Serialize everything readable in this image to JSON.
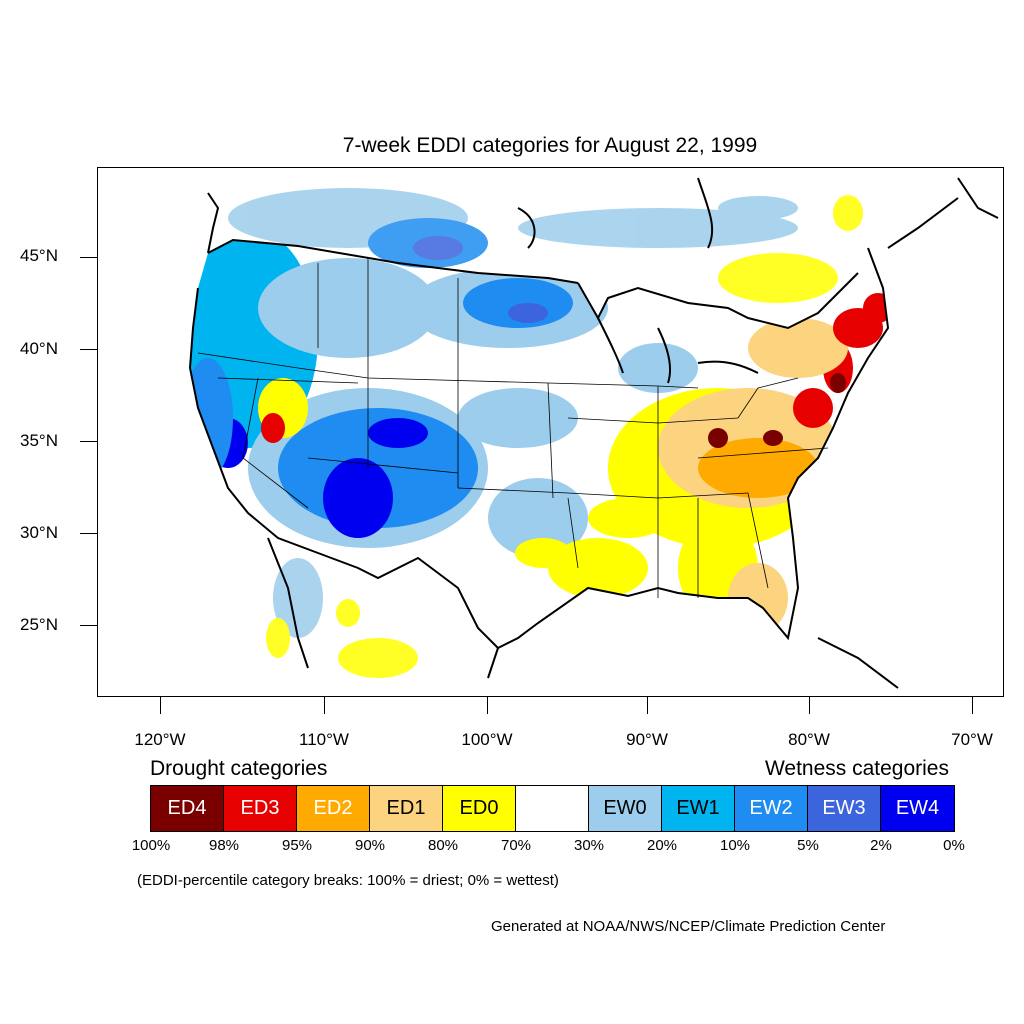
{
  "title": "7-week EDDI categories for August 22, 1999",
  "lat_labels": [
    "45°N",
    "40°N",
    "35°N",
    "30°N",
    "25°N"
  ],
  "lon_labels": [
    "120°W",
    "110°W",
    "100°W",
    "90°W",
    "80°W",
    "70°W"
  ],
  "legend": {
    "drought_heading": "Drought categories",
    "wetness_heading": "Wetness categories",
    "categories": [
      {
        "label": "ED4",
        "color": "#7a0000"
      },
      {
        "label": "ED3",
        "color": "#e60000"
      },
      {
        "label": "ED2",
        "color": "#ffaa00"
      },
      {
        "label": "ED1",
        "color": "#fcd37f"
      },
      {
        "label": "ED0",
        "color": "#ffff00"
      },
      {
        "label": "",
        "color": "#ffffff"
      },
      {
        "label": "EW0",
        "color": "#9ccdec"
      },
      {
        "label": "EW1",
        "color": "#00b4f0"
      },
      {
        "label": "EW2",
        "color": "#1e8cf0"
      },
      {
        "label": "EW3",
        "color": "#3c64dc"
      },
      {
        "label": "EW4",
        "color": "#0000f0"
      }
    ],
    "percent_breaks": [
      "100%",
      "98%",
      "95%",
      "90%",
      "80%",
      "70%",
      "30%",
      "20%",
      "10%",
      "5%",
      "2%",
      "0%"
    ]
  },
  "note": "(EDDI-percentile category breaks: 100% = driest; 0% = wettest)",
  "credit": "Generated at NOAA/NWS/NCEP/Climate Prediction Center"
}
